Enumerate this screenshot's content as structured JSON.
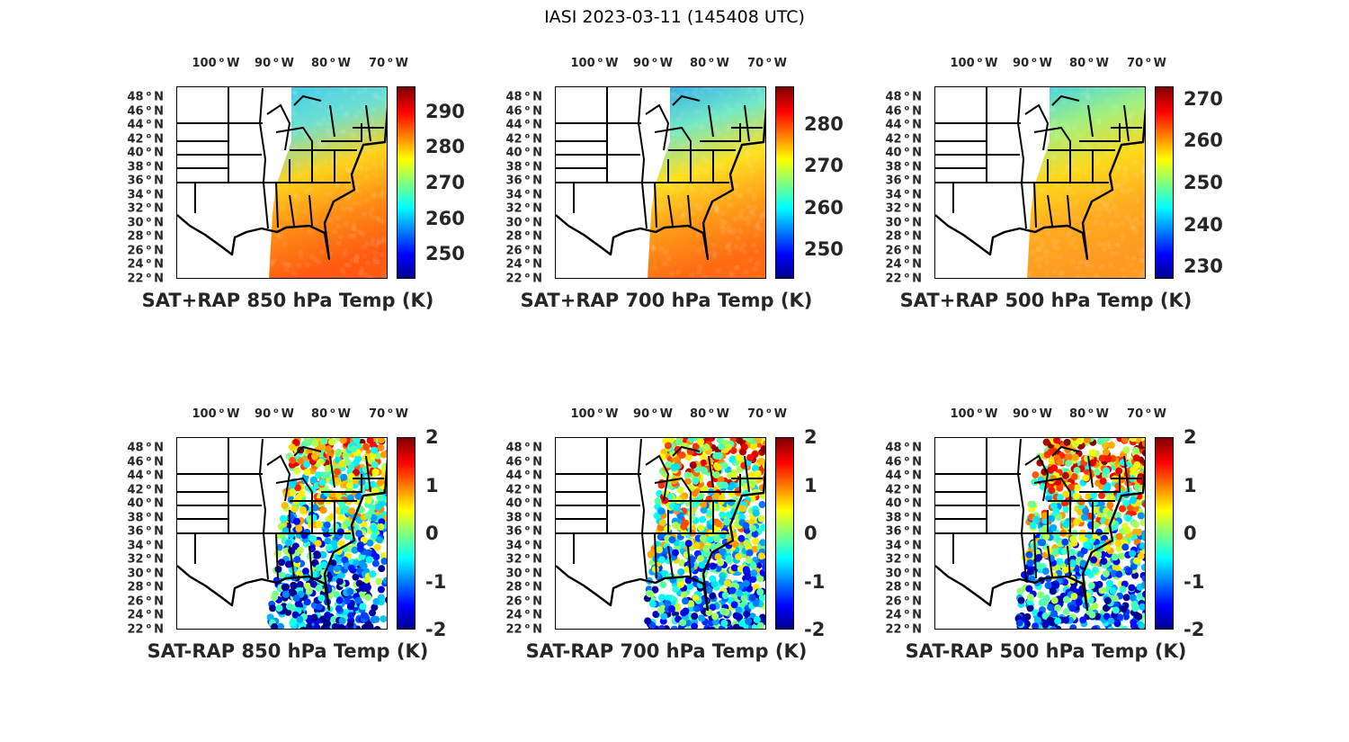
{
  "title": "IASI 2023-03-11 (145408 UTC)",
  "lon_labels": [
    {
      "v": "100",
      "h": "W"
    },
    {
      "v": "90",
      "h": "W"
    },
    {
      "v": "80",
      "h": "W"
    },
    {
      "v": "70",
      "h": "W"
    }
  ],
  "lat_labels": [
    "48",
    "46",
    "44",
    "42",
    "40",
    "38",
    "36",
    "34",
    "32",
    "30",
    "28",
    "26",
    "24",
    "22"
  ],
  "lat_hemi": "N",
  "colors": {
    "jet": [
      "#00008f",
      "#0000ff",
      "#00ffff",
      "#ffff00",
      "#ff0000",
      "#800000"
    ]
  },
  "chart_data": [
    {
      "type": "heatmap",
      "title": "SAT+RAP 850 hPa Temp (K)",
      "clim": [
        243,
        297
      ],
      "cticks": [
        "250",
        "260",
        "270",
        "280",
        "290"
      ],
      "ctick_values": [
        250,
        260,
        270,
        280,
        290
      ],
      "kind": "abs",
      "swath_colors": [
        "#3cc8f0",
        "#6fe0d0",
        "#ffd21a",
        "#ff8a14",
        "#ff5a10"
      ]
    },
    {
      "type": "heatmap",
      "title": "SAT+RAP 700 hPa Temp (K)",
      "clim": [
        243,
        289
      ],
      "cticks": [
        "250",
        "260",
        "270",
        "280"
      ],
      "ctick_values": [
        250,
        260,
        270,
        280
      ],
      "kind": "abs",
      "swath_colors": [
        "#2fa8f0",
        "#70e8c8",
        "#ffe020",
        "#ff9a18",
        "#ff6a12"
      ]
    },
    {
      "type": "heatmap",
      "title": "SAT+RAP 500 hPa Temp (K)",
      "clim": [
        227,
        273
      ],
      "cticks": [
        "230",
        "240",
        "250",
        "260",
        "270"
      ],
      "ctick_values": [
        230,
        240,
        250,
        260,
        270
      ],
      "kind": "abs",
      "swath_colors": [
        "#3cd0f0",
        "#a0f080",
        "#ffd81a",
        "#ffaa20",
        "#ff9a20"
      ]
    },
    {
      "type": "heatmap",
      "title": "SAT-RAP 850 hPa Temp (K)",
      "clim": [
        -2,
        2
      ],
      "cticks": [
        "2",
        "1",
        "0",
        "-1",
        "-2"
      ],
      "ctick_values": [
        2,
        1,
        0,
        -1,
        -2
      ],
      "kind": "diff",
      "bias_top": 0.8,
      "bias_bottom": -1.6
    },
    {
      "type": "heatmap",
      "title": "SAT-RAP 700 hPa Temp (K)",
      "clim": [
        -2,
        2
      ],
      "cticks": [
        "2",
        "1",
        "0",
        "-1",
        "-2"
      ],
      "ctick_values": [
        2,
        1,
        0,
        -1,
        -2
      ],
      "kind": "diff",
      "bias_top": 0.9,
      "bias_bottom": -1.2
    },
    {
      "type": "heatmap",
      "title": "SAT-RAP 500 hPa Temp (K)",
      "clim": [
        -2,
        2
      ],
      "cticks": [
        "2",
        "1",
        "0",
        "-1",
        "-2"
      ],
      "ctick_values": [
        2,
        1,
        0,
        -1,
        -2
      ],
      "kind": "diff",
      "bias_top": 1.1,
      "bias_bottom": -1.4
    }
  ]
}
